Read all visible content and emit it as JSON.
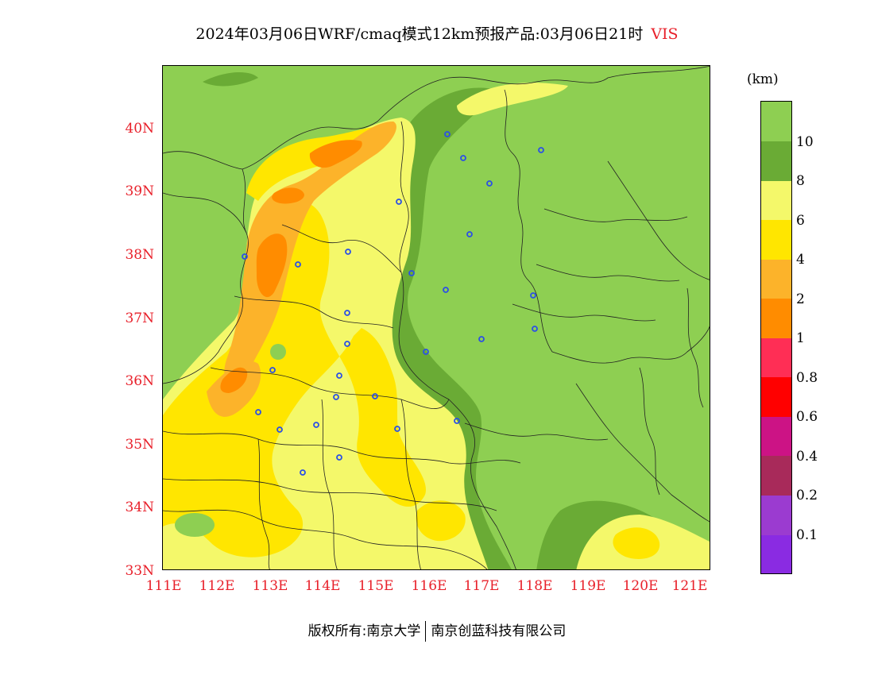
{
  "title": {
    "main": "2024年03月06日WRF/cmaq模式12km预报产品:03月06日21时",
    "variable": "VIS"
  },
  "map": {
    "lat_labels": [
      "40N",
      "39N",
      "38N",
      "37N",
      "36N",
      "35N",
      "34N",
      "33N"
    ],
    "lon_labels": [
      "111E",
      "112E",
      "113E",
      "114E",
      "115E",
      "116E",
      "117E",
      "118E",
      "119E",
      "120E",
      "121E"
    ]
  },
  "legend": {
    "unit": "(km)",
    "labels": [
      "10",
      "8",
      "6",
      "4",
      "2",
      "1",
      "0.8",
      "0.6",
      "0.4",
      "0.2",
      "0.1"
    ],
    "colors": [
      "#8ecf52",
      "#6aab35",
      "#f4f86a",
      "#ffe600",
      "#fcb32a",
      "#ff8c00",
      "#ff2e55",
      "#ff0000",
      "#cc1385",
      "#a82a5a",
      "#9b3bd0",
      "#8a2be2"
    ]
  },
  "footer": {
    "left": "版权所有:南京大学",
    "right": "南京创蓝科技有限公司"
  }
}
